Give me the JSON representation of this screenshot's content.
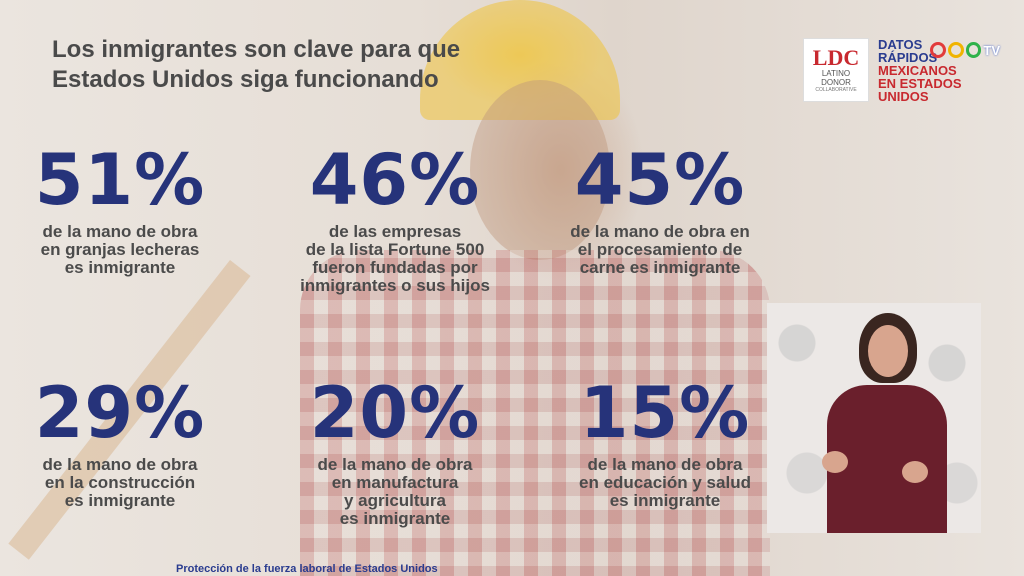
{
  "title": "Los inmigrantes son clave para que Estados Unidos siga funcionando",
  "logo": {
    "mark": "LDC",
    "line1": "LATINO",
    "line2": "DONOR",
    "line3": "COLLABORATIVE"
  },
  "datos": {
    "line1": "DATOS",
    "line2": "RÁPIDOS",
    "line3": "MEXICANOS",
    "line4": "EN ESTADOS",
    "line5": "UNIDOS",
    "tv": "TV"
  },
  "stats": [
    {
      "pct": "51%",
      "desc": "de la mano de obra\nen granjas lecheras\nes inmigrante"
    },
    {
      "pct": "46%",
      "desc": "de las empresas\nde la lista Fortune 500\nfueron fundadas por\ninmigrantes o sus hijos"
    },
    {
      "pct": "45%",
      "desc": "de la mano de obra en\nel procesamiento de\ncarne es inmigrante"
    },
    {
      "pct": "29%",
      "desc": "de la mano de obra\nen la construcción\nes inmigrante"
    },
    {
      "pct": "20%",
      "desc": "de la mano de obra\nen manufactura\ny agricultura\nes inmigrante"
    },
    {
      "pct": "15%",
      "desc": "de la mano de obra\nen educación y salud\nes inmigrante"
    }
  ],
  "footer": "Protección de la fuerza laboral de Estados Unidos",
  "colors": {
    "accent_blue": "#26337a",
    "brand_red": "#c8292f"
  }
}
